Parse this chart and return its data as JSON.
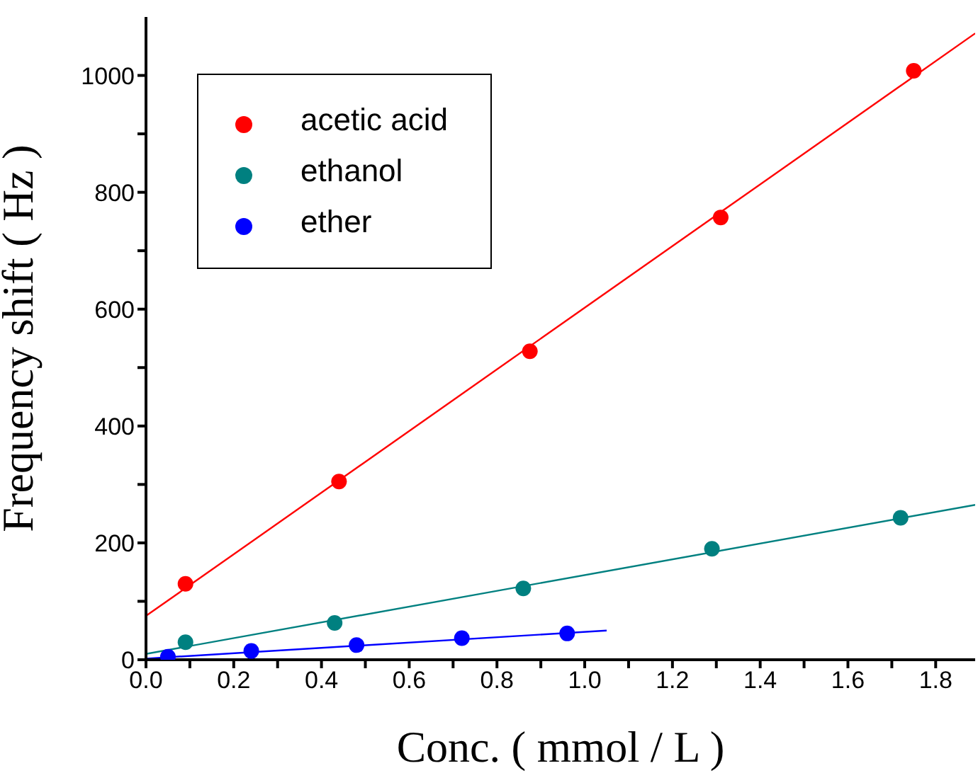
{
  "chart_data": {
    "type": "scatter",
    "xlabel": "Conc. ( mmol / L )",
    "ylabel": "Frequency shift ( Hz )",
    "xlim": [
      0,
      1.89
    ],
    "xticks": [
      {
        "value": 0,
        "label": "0.0"
      },
      {
        "value": 0.1,
        "label": null
      },
      {
        "value": 0.2,
        "label": "0.2"
      },
      {
        "value": 0.3,
        "label": null
      },
      {
        "value": 0.4,
        "label": "0.4"
      },
      {
        "value": 0.5,
        "label": null
      },
      {
        "value": 0.6,
        "label": "0.6"
      },
      {
        "value": 0.7,
        "label": null
      },
      {
        "value": 0.8,
        "label": "0.8"
      },
      {
        "value": 0.9,
        "label": null
      },
      {
        "value": 1,
        "label": "1.0"
      },
      {
        "value": 1.1,
        "label": null
      },
      {
        "value": 1.2,
        "label": "1.2"
      },
      {
        "value": 1.3,
        "label": null
      },
      {
        "value": 1.4,
        "label": "1.4"
      },
      {
        "value": 1.5,
        "label": null
      },
      {
        "value": 1.6,
        "label": "1.6"
      },
      {
        "value": 1.7,
        "label": null
      },
      {
        "value": 1.8,
        "label": "1.8"
      }
    ],
    "ylim": [
      0,
      1100
    ],
    "yticks": [
      0,
      {
        "value": 100,
        "label": null
      },
      200,
      {
        "value": 300,
        "label": null
      },
      400,
      {
        "value": 500,
        "label": null
      },
      600,
      {
        "value": 700,
        "label": null
      },
      800,
      {
        "value": 900,
        "label": null
      },
      1000
    ],
    "legend": "top left",
    "marker": "circle",
    "series": [
      {
        "name": "acetic acid",
        "color": "#ff0000",
        "x": [
          0.09,
          0.44,
          0.875,
          1.31,
          1.75
        ],
        "values": [
          130,
          305,
          528,
          757,
          1008
        ]
      },
      {
        "name": "ethanol",
        "color": "#008080",
        "x": [
          0.09,
          0.43,
          0.86,
          1.29,
          1.72
        ],
        "values": [
          30,
          63,
          122,
          190,
          243
        ]
      },
      {
        "name": "ether",
        "color": "#0000ff",
        "x": [
          0.05,
          0.24,
          0.48,
          0.72,
          0.96
        ],
        "values": [
          5,
          15,
          25,
          37,
          45
        ]
      },
      {
        "type": "line",
        "marker": "none",
        "color": "#ff0000",
        "x": [
          0,
          1.89
        ],
        "values": [
          75,
          1072
        ]
      },
      {
        "type": "line",
        "marker": "none",
        "color": "#008080",
        "x": [
          0,
          1.89
        ],
        "values": [
          10,
          265
        ]
      },
      {
        "type": "line",
        "marker": "none",
        "color": "#0000ff",
        "x": [
          0,
          1.05
        ],
        "values": [
          2,
          50
        ]
      }
    ]
  }
}
